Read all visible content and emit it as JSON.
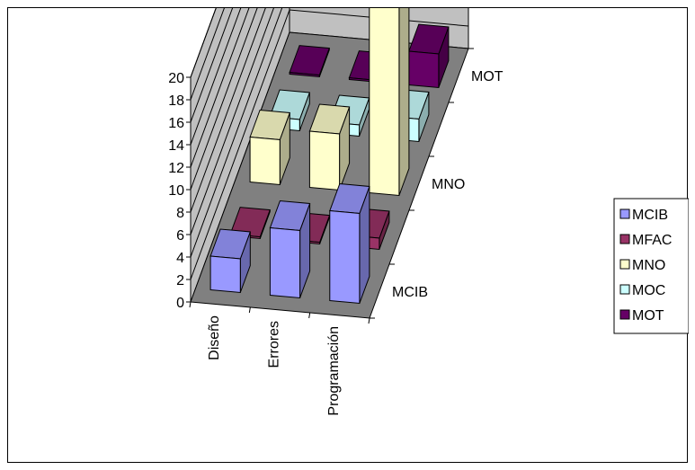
{
  "chart_data": {
    "type": "bar",
    "style": "3d-column",
    "categories": [
      "Diseño",
      "Errores",
      "Programación"
    ],
    "depth_labels": [
      "MCIB",
      "MNO",
      "MOT"
    ],
    "yticks": [
      "0",
      "2",
      "4",
      "6",
      "8",
      "10",
      "12",
      "14",
      "16",
      "18",
      "20"
    ],
    "ylim": [
      0,
      20
    ],
    "grid": true,
    "legend_position": "right",
    "series": [
      {
        "name": "MCIB",
        "values": [
          3,
          6,
          8
        ],
        "color": "#9999ff"
      },
      {
        "name": "MFAC",
        "values": [
          0,
          0,
          1
        ],
        "color": "#993366"
      },
      {
        "name": "MNO",
        "values": [
          4,
          5,
          18
        ],
        "color": "#ffffcc"
      },
      {
        "name": "MOC",
        "values": [
          1,
          1,
          2
        ],
        "color": "#ccffff"
      },
      {
        "name": "MOT",
        "values": [
          0,
          0,
          3
        ],
        "color": "#660066"
      }
    ]
  }
}
